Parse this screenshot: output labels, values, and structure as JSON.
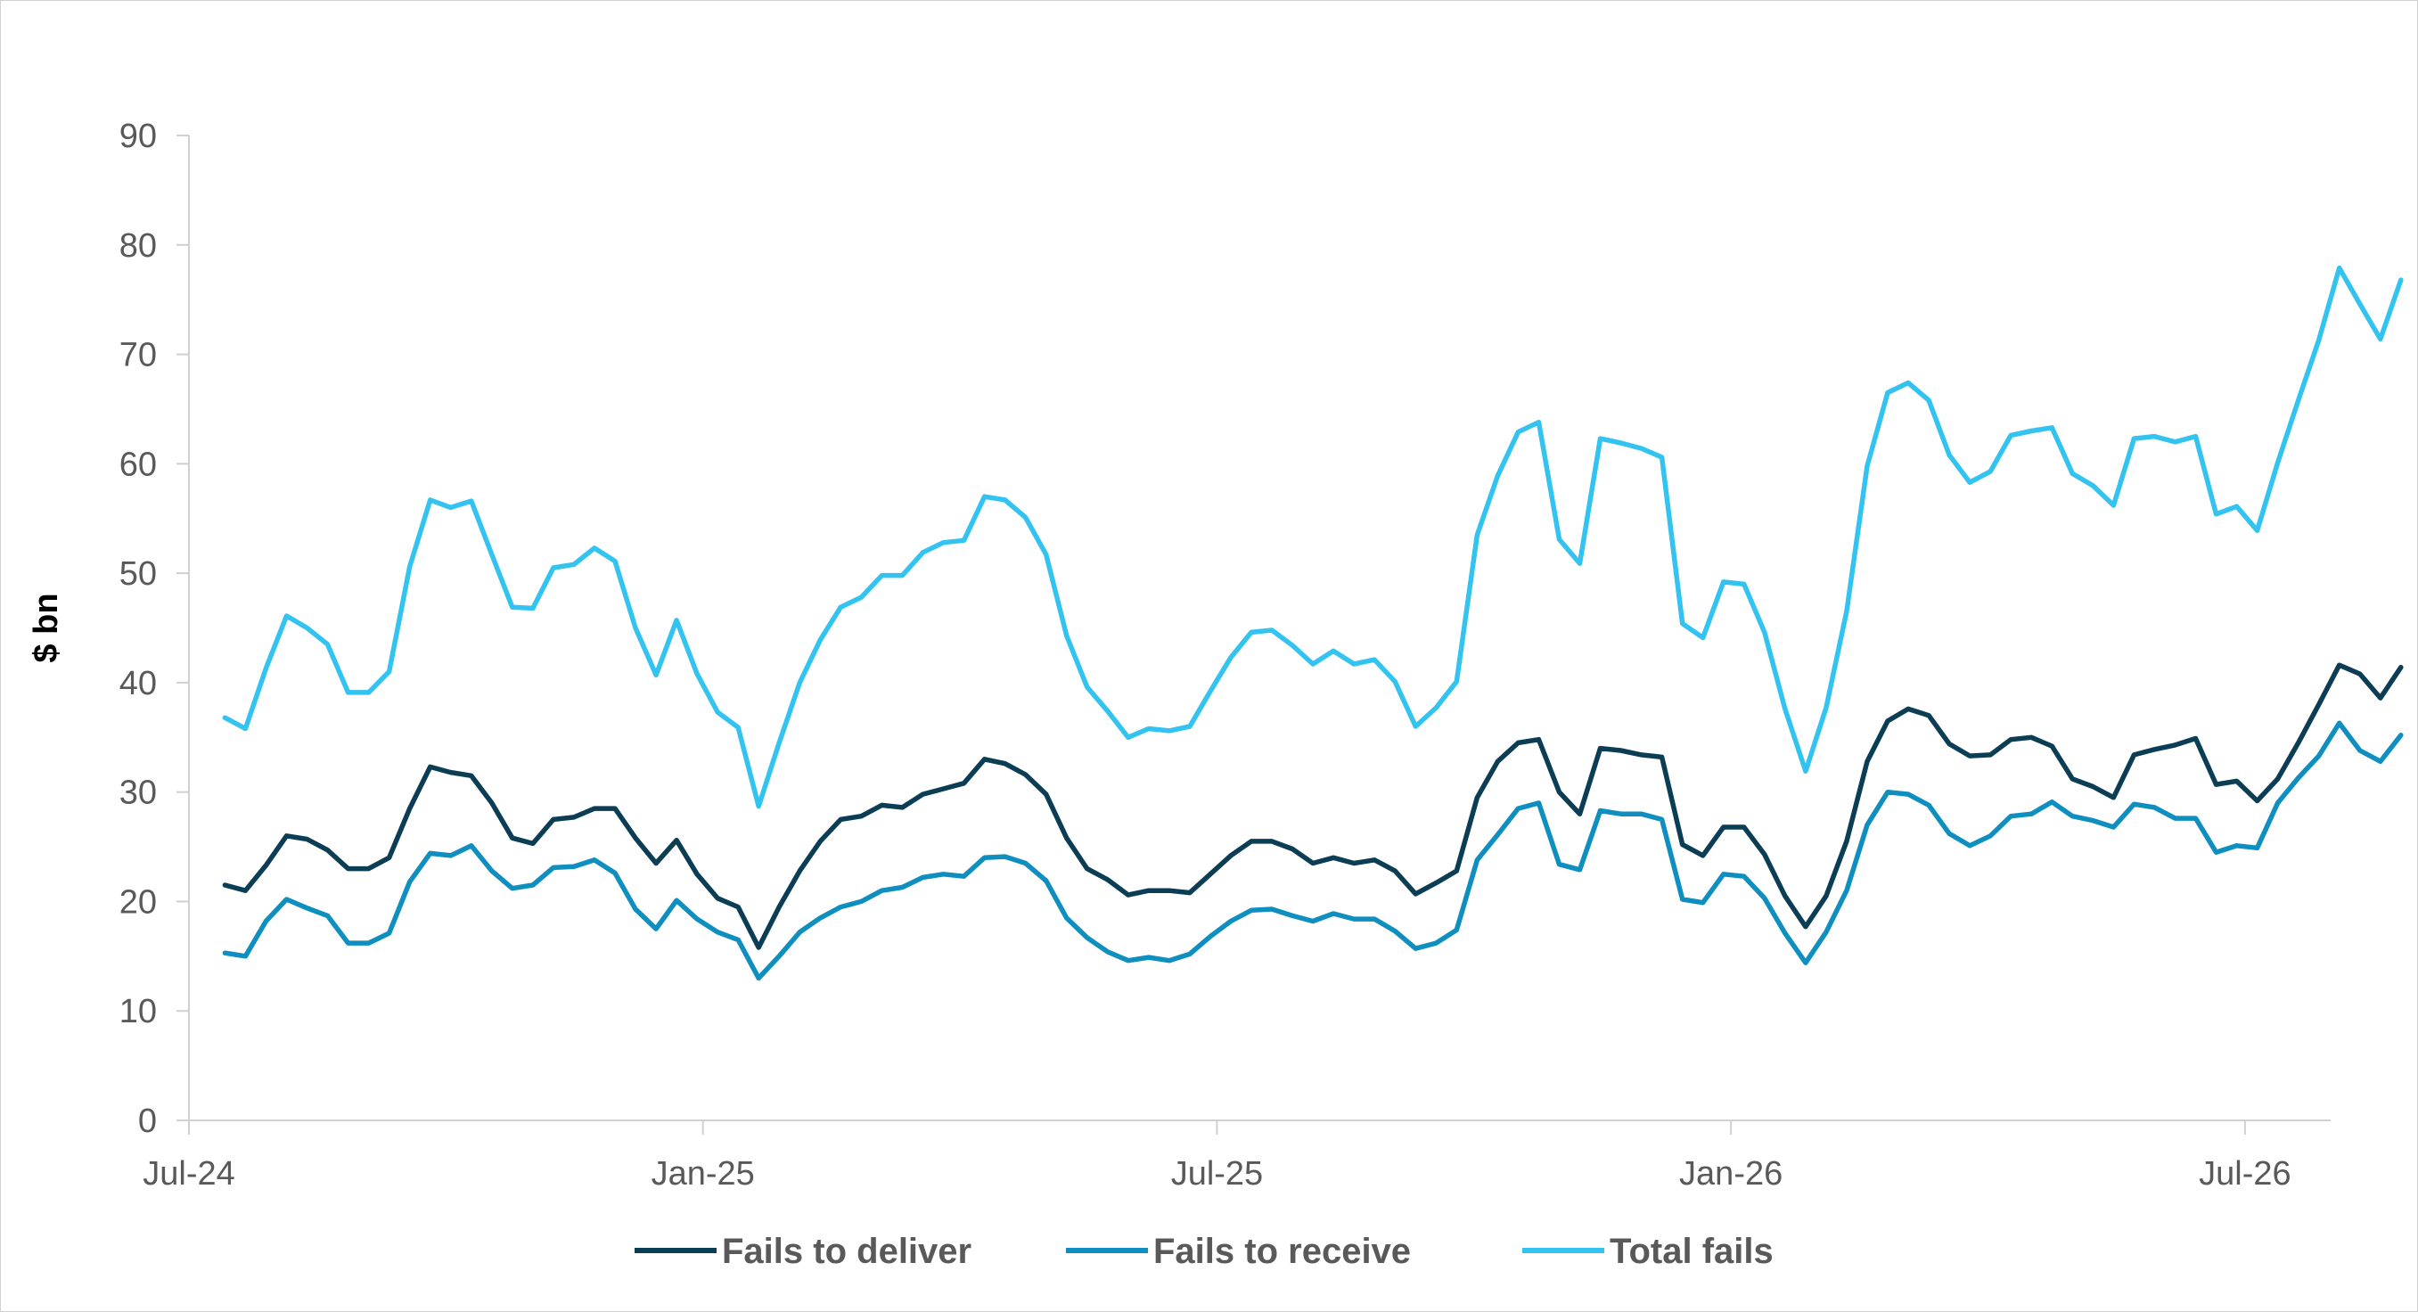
{
  "chart_data": {
    "type": "line",
    "title": "",
    "xlabel": "",
    "ylabel": "$ bn",
    "ylim": [
      0,
      90
    ],
    "yticks": [
      "0",
      "10",
      "20",
      "30",
      "40",
      "50",
      "60",
      "70",
      "80",
      "90"
    ],
    "xticks": [
      "Jul-24",
      "Jan-25",
      "Jul-25",
      "Jan-26",
      "Jul-26"
    ],
    "x_start": "2024-07",
    "x_end": "2026-08",
    "grid": false,
    "legend_position": "bottom",
    "colors": {
      "deliver": "#0b3d55",
      "receive": "#0e8fbf",
      "total": "#33c3f0"
    },
    "series": [
      {
        "name": "Fails to deliver",
        "key": "deliver",
        "values": [
          21.5,
          21,
          23.3,
          26,
          25.7,
          24.7,
          23,
          23,
          24,
          28.5,
          32.3,
          31.8,
          31.5,
          29,
          25.8,
          25.3,
          27.5,
          27.7,
          28.5,
          28.5,
          25.8,
          23.5,
          25.6,
          22.5,
          20.3,
          19.5,
          15.8,
          19.5,
          22.8,
          25.5,
          27.5,
          27.8,
          28.8,
          28.6,
          29.8,
          30.3,
          30.8,
          33,
          32.6,
          31.6,
          29.8,
          25.8,
          23,
          22,
          20.6,
          21,
          21,
          20.8,
          22.5,
          24.2,
          25.5,
          25.5,
          24.8,
          23.5,
          24,
          23.5,
          23.8,
          22.8,
          20.7,
          21.7,
          22.8,
          29.5,
          32.8,
          34.5,
          34.8,
          30,
          28,
          34,
          33.8,
          33.4,
          33.2,
          25.2,
          24.2,
          26.8,
          26.8,
          24.3,
          20.5,
          17.7,
          20.5,
          25.5,
          32.8,
          36.5,
          37.6,
          37,
          34.4,
          33.3,
          33.4,
          34.8,
          35,
          34.2,
          31.2,
          30.5,
          29.5,
          33.4,
          33.9,
          34.3,
          34.9,
          30.7,
          31,
          29.2,
          31.2,
          34.5,
          38,
          41.6,
          40.8,
          38.6,
          41.4
        ]
      },
      {
        "name": "Fails to receive",
        "key": "receive",
        "values": [
          15.3,
          15,
          18.2,
          20.2,
          19.4,
          18.7,
          16.2,
          16.2,
          17.1,
          21.8,
          24.4,
          24.2,
          25.1,
          22.8,
          21.2,
          21.5,
          23.1,
          23.2,
          23.8,
          22.6,
          19.3,
          17.5,
          20.1,
          18.4,
          17.2,
          16.5,
          13,
          15,
          17.2,
          18.5,
          19.5,
          20,
          21,
          21.3,
          22.2,
          22.5,
          22.3,
          24,
          24.1,
          23.5,
          21.9,
          18.5,
          16.7,
          15.4,
          14.6,
          14.9,
          14.6,
          15.2,
          16.8,
          18.2,
          19.2,
          19.3,
          18.7,
          18.2,
          18.9,
          18.4,
          18.4,
          17.3,
          15.7,
          16.2,
          17.4,
          23.8,
          26.1,
          28.5,
          29,
          23.4,
          22.9,
          28.3,
          28,
          28,
          27.5,
          20.2,
          19.9,
          22.5,
          22.3,
          20.3,
          17.1,
          14.4,
          17.2,
          21,
          27,
          30,
          29.8,
          28.8,
          26.2,
          25.1,
          26,
          27.8,
          28,
          29.1,
          27.8,
          27.4,
          26.8,
          28.9,
          28.6,
          27.6,
          27.6,
          24.5,
          25.1,
          24.9,
          29,
          31.3,
          33.3,
          36.3,
          33.8,
          32.8,
          35.2
        ]
      },
      {
        "name": "Total fails",
        "key": "total",
        "values": [
          36.8,
          35.8,
          41.3,
          46.1,
          45,
          43.5,
          39.1,
          39.1,
          41,
          50.6,
          56.7,
          56,
          56.6,
          51.7,
          46.9,
          46.8,
          50.5,
          50.8,
          52.3,
          51.1,
          45,
          40.7,
          45.7,
          40.8,
          37.3,
          35.9,
          28.7,
          34.5,
          40,
          43.9,
          46.9,
          47.8,
          49.8,
          49.8,
          51.9,
          52.8,
          53,
          57,
          56.7,
          55.1,
          51.7,
          44.3,
          39.6,
          37.4,
          35,
          35.8,
          35.6,
          36,
          39.2,
          42.3,
          44.6,
          44.8,
          43.4,
          41.7,
          42.9,
          41.7,
          42.1,
          40.1,
          36,
          37.7,
          40.1,
          53.5,
          58.9,
          62.9,
          63.8,
          53.1,
          50.9,
          62.3,
          61.9,
          61.4,
          60.6,
          45.4,
          44.1,
          49.2,
          49,
          44.6,
          37.6,
          31.9,
          37.7,
          46.5,
          59.8,
          66.5,
          67.4,
          65.8,
          60.8,
          58.3,
          59.3,
          62.6,
          63,
          63.3,
          59.1,
          58,
          56.2,
          62.3,
          62.5,
          62,
          62.5,
          55.4,
          56.1,
          53.9,
          60.1,
          65.8,
          71.3,
          77.9,
          74.6,
          71.4,
          76.8
        ]
      }
    ]
  }
}
